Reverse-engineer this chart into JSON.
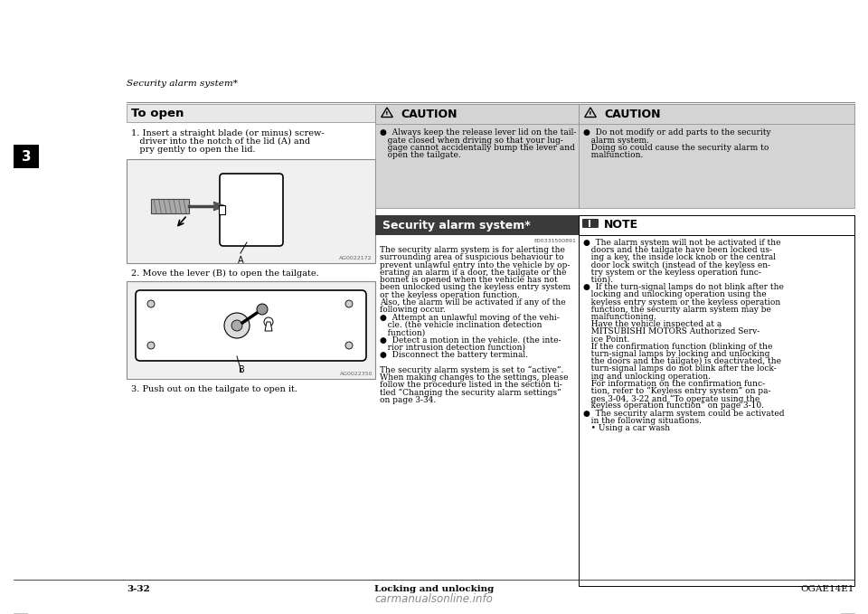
{
  "bg_color": "#ffffff",
  "header_text": "Security alarm system*",
  "footer_left": "3-32",
  "footer_center": "Locking and unlocking",
  "footer_right": "OGAE14E1",
  "chapter_num": "3",
  "chapter_bg": "#000000",
  "chapter_fg": "#ffffff",
  "to_open_title": "To open",
  "to_open_bg": "#e8e8e8",
  "img1_code": "AG0022172",
  "img2_code": "AG0022350",
  "caution1_title": "CAUTION",
  "caution1_bg": "#d4d4d4",
  "caution1_lines": [
    "●  Always keep the release lever lid on the tail-",
    "   gate closed when driving so that your lug-",
    "   gage cannot accidentally bump the lever and",
    "   open the tailgate."
  ],
  "caution2_title": "CAUTION",
  "caution2_bg": "#d4d4d4",
  "caution2_lines": [
    "●  Do not modify or add parts to the security",
    "   alarm system.",
    "   Doing so could cause the security alarm to",
    "   malfunction."
  ],
  "security_title": "Security alarm system*",
  "security_title_bg": "#3a3a3a",
  "security_title_fg": "#ffffff",
  "security_code": "E00331500891",
  "security_lines": [
    "The security alarm system is for alerting the",
    "surrounding area of suspicious behaviour to",
    "prevent unlawful entry into the vehicle by op-",
    "erating an alarm if a door, the tailgate or the",
    "bonnet is opened when the vehicle has not",
    "been unlocked using the keyless entry system",
    "or the keyless operation function.",
    "Also, the alarm will be activated if any of the",
    "following occur.",
    "●  Attempt an unlawful moving of the vehi-",
    "   cle. (the vehicle inclination detection",
    "   function)",
    "●  Detect a motion in the vehicle. (the inte-",
    "   rior intrusion detection function)",
    "●  Disconnect the battery terminal.",
    "",
    "The security alarm system is set to “active”.",
    "When making changes to the settings, please",
    "follow the procedure listed in the section ti-",
    "tled “Changing the security alarm settings”",
    "on page 3-34."
  ],
  "note_title": "NOTE",
  "note_bg": "#ffffff",
  "note_lines": [
    "●  The alarm system will not be activated if the",
    "   doors and the tailgate have been locked us-",
    "   ing a key, the inside lock knob or the central",
    "   door lock switch (instead of the keyless en-",
    "   try system or the keyless operation func-",
    "   tion).",
    "●  If the turn-signal lamps do not blink after the",
    "   locking and unlocking operation using the",
    "   keyless entry system or the keyless operation",
    "   function, the security alarm system may be",
    "   malfunctioning.",
    "   Have the vehicle inspected at a",
    "   MITSUBISHI MOTORS Authorized Serv-",
    "   ice Point.",
    "   If the confirmation function (blinking of the",
    "   turn-signal lamps by locking and unlocking",
    "   the doors and the tailgate) is deactivated, the",
    "   turn-signal lamps do not blink after the lock-",
    "   ing and unlocking operation.",
    "   For information on the confirmation func-",
    "   tion, refer to “Keyless entry system” on pa-",
    "   ges 3-04, 3-22 and “To operate using the",
    "   keyless operation function” on page 3-10.",
    "●  The security alarm system could be activated",
    "   in the following situations.",
    "   • Using a car wash"
  ],
  "watermark_text": "carmanualsonline.info",
  "step1_lines": [
    "1. Insert a straight blade (or minus) screw-",
    "   driver into the notch of the lid (A) and",
    "   pry gently to open the lid."
  ],
  "step2": "2. Move the lever (B) to open the tailgate.",
  "step3": "3. Push out on the tailgate to open it."
}
